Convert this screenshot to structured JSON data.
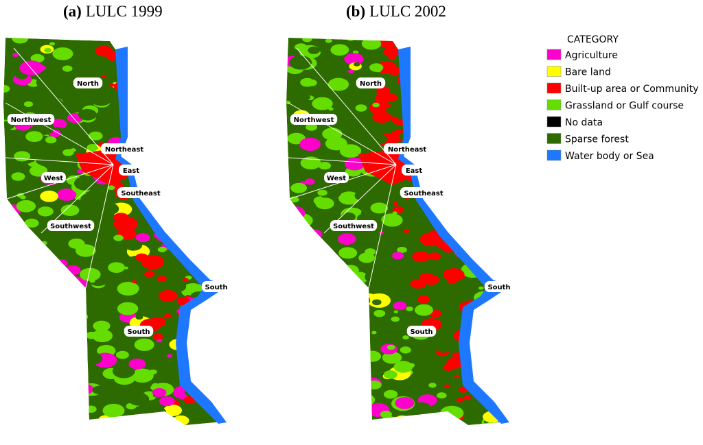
{
  "panels": [
    {
      "label": "(a)",
      "title": "LULC 1999",
      "zones": [
        "North",
        "Northwest",
        "Northeast",
        "East",
        "West",
        "Southeast",
        "Southwest",
        "South",
        "South"
      ]
    },
    {
      "label": "(b)",
      "title": "LULC 2002",
      "zones": [
        "North",
        "Northwest",
        "Northeast",
        "East",
        "West",
        "Southeast",
        "Southwest",
        "South",
        "South"
      ]
    }
  ],
  "legend": {
    "title": "CATEGORY",
    "items": [
      {
        "name": "Agriculture",
        "color": "#ff00cc"
      },
      {
        "name": "Bare land",
        "color": "#ffff00"
      },
      {
        "name": "Built-up area or Community",
        "color": "#ff0000"
      },
      {
        "name": "Grassland or Gulf course",
        "color": "#66dd00"
      },
      {
        "name": "No data",
        "color": "#000000"
      },
      {
        "name": "Sparse forest",
        "color": "#2d6a00"
      },
      {
        "name": "Water body or Sea",
        "color": "#1e78ff"
      }
    ]
  }
}
